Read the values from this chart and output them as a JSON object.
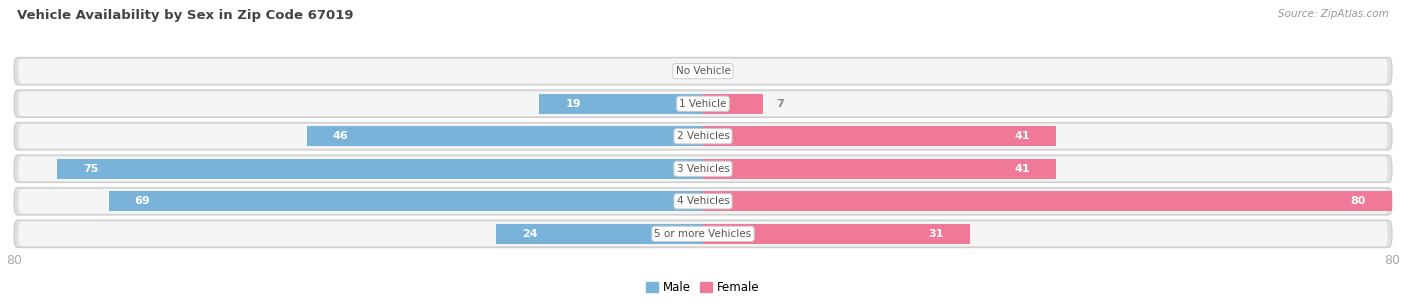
{
  "title": "Vehicle Availability by Sex in Zip Code 67019",
  "source": "Source: ZipAtlas.com",
  "categories": [
    "No Vehicle",
    "1 Vehicle",
    "2 Vehicles",
    "3 Vehicles",
    "4 Vehicles",
    "5 or more Vehicles"
  ],
  "male_values": [
    0,
    19,
    46,
    75,
    69,
    24
  ],
  "female_values": [
    0,
    7,
    41,
    41,
    80,
    31
  ],
  "male_color": "#7ab3d9",
  "female_color": "#f07898",
  "xlim": 80,
  "label_color_inside": "#ffffff",
  "label_color_outside": "#888888",
  "center_label_color": "#555555",
  "axis_label_color": "#aaaaaa",
  "bar_height": 0.62,
  "row_bg_color": "#e8e8e8",
  "row_inner_color": "#f4f4f4",
  "fig_bg": "#ffffff",
  "figsize": [
    14.06,
    3.05
  ],
  "dpi": 100
}
